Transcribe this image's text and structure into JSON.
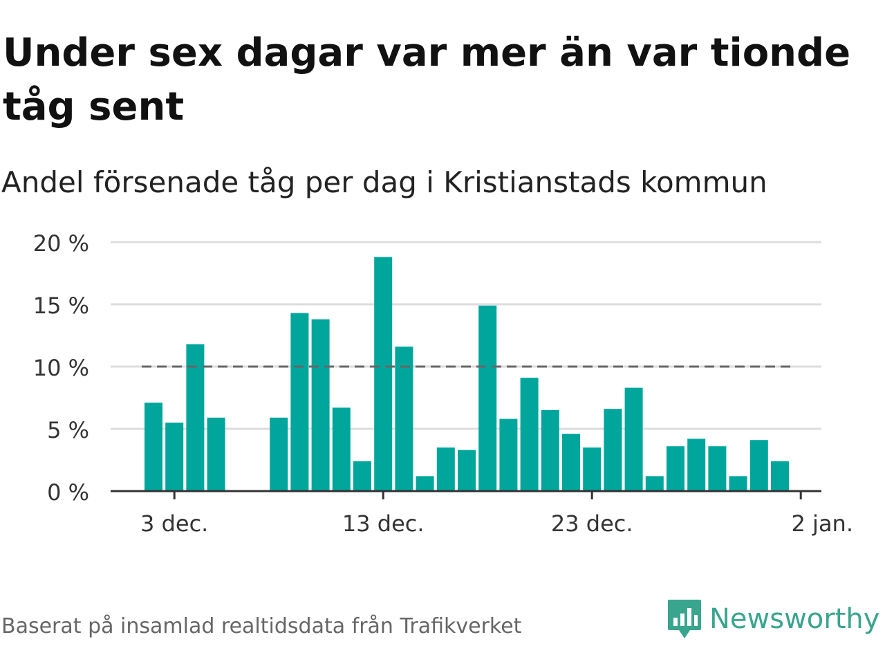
{
  "title": "Under sex dagar var mer än var tionde tåg sent",
  "subtitle": "Andel försenade tåg per dag i Kristianstads kommun",
  "footer": "Baserat på insamlad realtidsdata från Trafikverket",
  "logo": {
    "name": "Newsworthy",
    "icon": "newsworthy-bar-chart-badge-icon"
  },
  "colors": {
    "bar": "#00a69c",
    "threshold": "#666666",
    "grid": "#dddddd",
    "axis": "#333333",
    "logo": "#3aa58f"
  },
  "chart_data": {
    "type": "bar",
    "x_type": "date",
    "x": [
      "2023-12-02",
      "2023-12-03",
      "2023-12-04",
      "2023-12-05",
      "2023-12-06",
      "2023-12-07",
      "2023-12-08",
      "2023-12-09",
      "2023-12-10",
      "2023-12-11",
      "2023-12-12",
      "2023-12-13",
      "2023-12-14",
      "2023-12-15",
      "2023-12-16",
      "2023-12-17",
      "2023-12-18",
      "2023-12-19",
      "2023-12-20",
      "2023-12-21",
      "2023-12-22",
      "2023-12-23",
      "2023-12-24",
      "2023-12-25",
      "2023-12-26",
      "2023-12-27",
      "2023-12-28",
      "2023-12-29",
      "2023-12-30",
      "2023-12-31",
      "2024-01-01"
    ],
    "values": [
      7.1,
      5.5,
      11.8,
      5.9,
      null,
      null,
      5.9,
      14.3,
      13.8,
      6.7,
      2.4,
      18.8,
      11.6,
      1.2,
      3.5,
      3.3,
      14.9,
      5.8,
      9.1,
      6.5,
      4.6,
      3.5,
      6.6,
      8.3,
      1.2,
      3.6,
      4.2,
      3.6,
      1.2,
      4.1,
      2.4
    ],
    "threshold": 10,
    "ylim": [
      0,
      20
    ],
    "yticks": [
      0,
      5,
      10,
      15,
      20
    ],
    "ytick_labels": [
      "0 %",
      "5 %",
      "10 %",
      "15 %",
      "20 %"
    ],
    "xticks": [
      "2023-12-03",
      "2023-12-13",
      "2023-12-23",
      "2024-01-02"
    ],
    "xtick_labels": [
      "3 dec.",
      "13 dec.",
      "23 dec.",
      "2 jan."
    ],
    "grid": true,
    "legend": "none"
  }
}
